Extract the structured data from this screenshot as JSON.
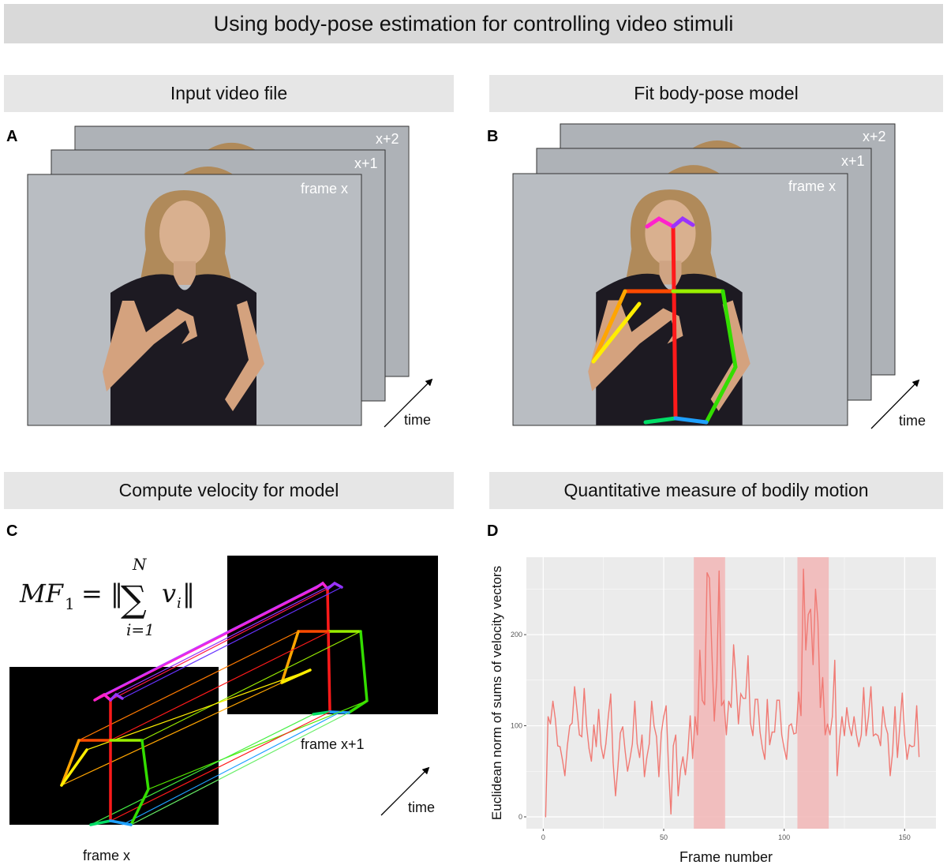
{
  "title": "Using body-pose estimation for controlling video stimuli",
  "panels": {
    "A": {
      "letter": "A",
      "header": "Input video file",
      "frame_labels": [
        "frame x",
        "x+1",
        "x+2"
      ],
      "time_label": "time"
    },
    "B": {
      "letter": "B",
      "header": "Fit body-pose model",
      "frame_labels": [
        "frame x",
        "x+1",
        "x+2"
      ],
      "time_label": "time"
    },
    "C": {
      "letter": "C",
      "header": "Compute velocity for model",
      "formula": {
        "lhs": "MF",
        "sub": "1",
        "eq": "= ‖",
        "sum_top": "N",
        "sum": "∑",
        "sum_bottom": "i=1",
        "term": "v",
        "term_sub": "i",
        "close": "‖"
      },
      "frame_labels": [
        "frame x",
        "frame x+1"
      ],
      "time_label": "time"
    },
    "D": {
      "letter": "D",
      "header": "Quantitative measure of bodily motion"
    }
  },
  "colors": {
    "line": "#f07a74",
    "highlight": "#f2b6b6",
    "plot_bg": "#ebebeb",
    "grid": "#ffffff"
  },
  "chart_data": {
    "type": "line",
    "xlabel": "Frame number",
    "ylabel": "Euclidean norm of sums of velocity vectors",
    "xlim": [
      -7,
      163
    ],
    "ylim": [
      -13,
      285
    ],
    "xticks": [
      0,
      50,
      100,
      150
    ],
    "yticks": [
      0,
      100,
      200
    ],
    "grid": true,
    "highlight_ranges": [
      [
        62.5,
        75.5
      ],
      [
        105.5,
        118.5
      ]
    ],
    "x_start": 1,
    "values": [
      0,
      110,
      102,
      127,
      108,
      78,
      77,
      62,
      45,
      78,
      100,
      103,
      143,
      118,
      90,
      88,
      141,
      100,
      75,
      61,
      101,
      77,
      118,
      78,
      64,
      80,
      110,
      135,
      60,
      23,
      55,
      92,
      99,
      72,
      50,
      64,
      80,
      127,
      80,
      65,
      90,
      44,
      65,
      80,
      127,
      100,
      88,
      44,
      92,
      110,
      122,
      55,
      3,
      78,
      90,
      23,
      52,
      66,
      46,
      70,
      111,
      64,
      110,
      90,
      183,
      128,
      123,
      268,
      262,
      180,
      105,
      150,
      270,
      122,
      127,
      90,
      127,
      120,
      189,
      150,
      102,
      135,
      130,
      130,
      177,
      103,
      89,
      129,
      129,
      93,
      75,
      63,
      129,
      79,
      93,
      93,
      128,
      128,
      90,
      75,
      63,
      100,
      102,
      91,
      92,
      137,
      111,
      272,
      183,
      222,
      228,
      167,
      250,
      215,
      120,
      153,
      90,
      102,
      90,
      110,
      172,
      45,
      85,
      110,
      89,
      120,
      100,
      89,
      110,
      90,
      77,
      90,
      142,
      89,
      110,
      143,
      89,
      91,
      89,
      78,
      121,
      100,
      91,
      45,
      70,
      121,
      65,
      100,
      136,
      90,
      63,
      79,
      77,
      78,
      122,
      66
    ]
  }
}
